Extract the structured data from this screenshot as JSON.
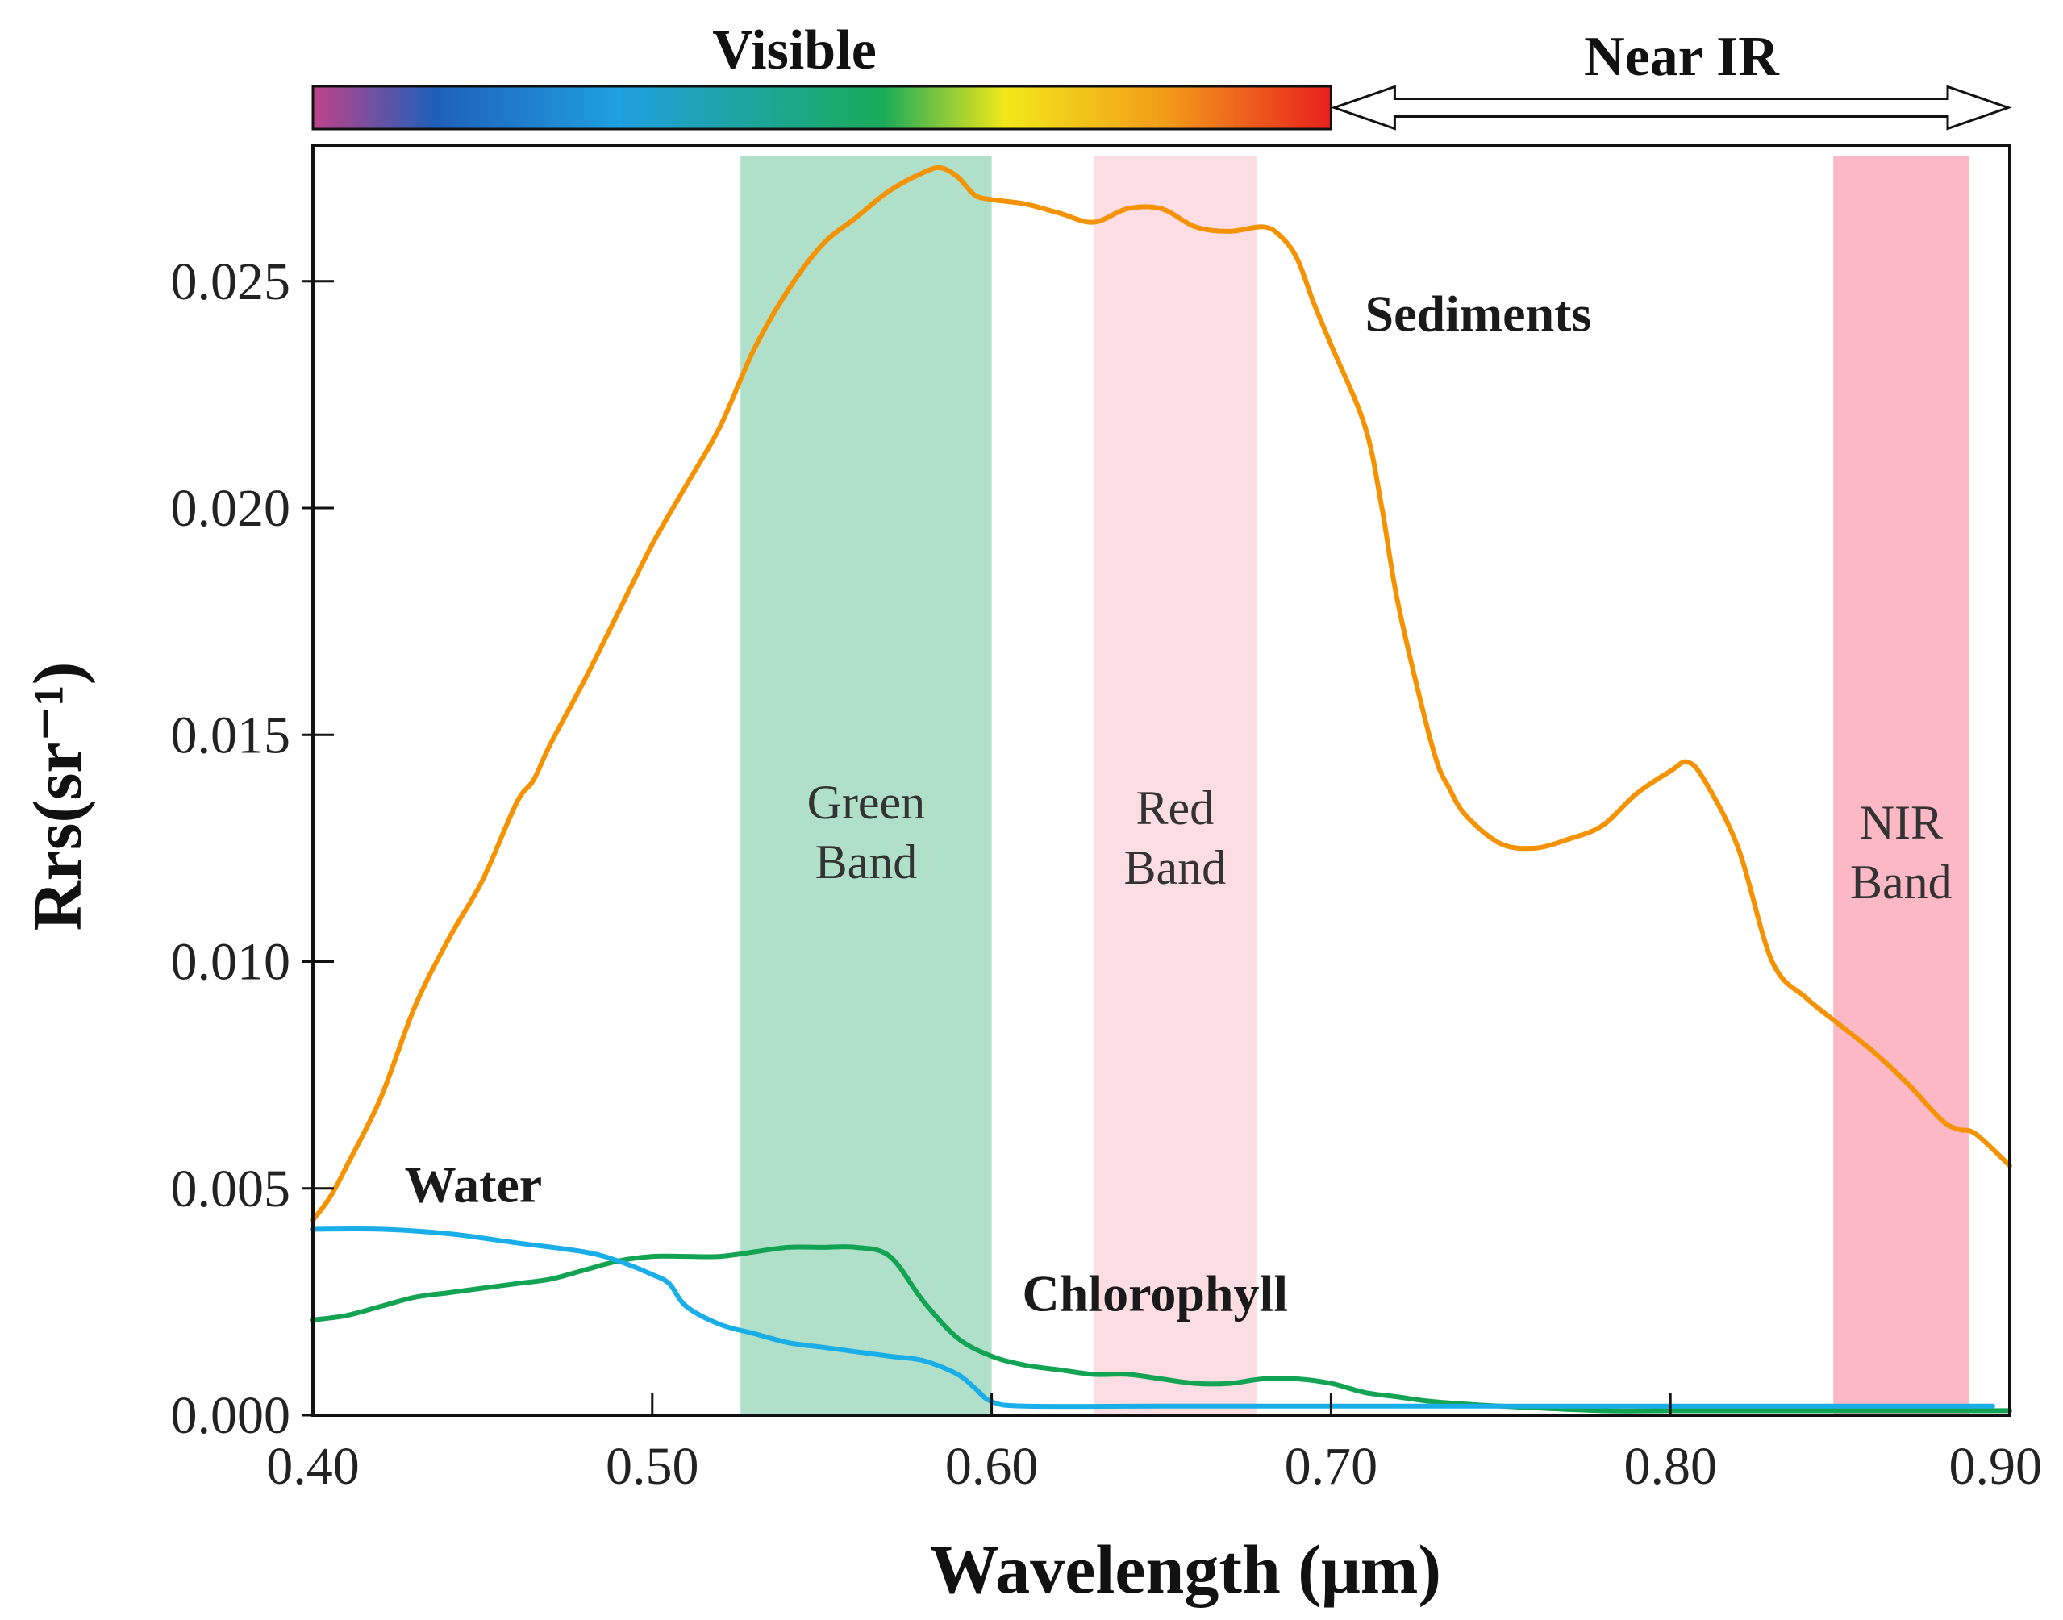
{
  "chart_data": {
    "type": "line",
    "title": "",
    "xlabel": "Wavelength (μm)",
    "ylabel": "Rrs(sr⁻¹)",
    "xlim": [
      0.4,
      0.9
    ],
    "ylim": [
      0.0,
      0.028
    ],
    "x_ticks": [
      "0.40",
      "0.50",
      "0.60",
      "0.70",
      "0.80",
      "0.90"
    ],
    "x_tick_values": [
      0.4,
      0.5,
      0.6,
      0.7,
      0.8,
      0.9
    ],
    "y_ticks": [
      "0.000",
      "0.005",
      "0.010",
      "0.015",
      "0.020",
      "0.025"
    ],
    "y_tick_values": [
      0.0,
      0.005,
      0.01,
      0.015,
      0.02,
      0.025
    ],
    "grid": false,
    "spectrum_bar": {
      "visible_label": "Visible",
      "near_ir_label": "Near IR",
      "visible_range": [
        0.4,
        0.7
      ],
      "near_ir_range": [
        0.7,
        0.9
      ],
      "gradient_colors": [
        "#c0428a",
        "#1f5fb8",
        "#1fa0e0",
        "#1aab5a",
        "#f2e81a",
        "#f39a1a",
        "#e8201e"
      ]
    },
    "bands": [
      {
        "name": "Green Band",
        "line1": "Green",
        "line2": "Band",
        "range": [
          0.526,
          0.6
        ],
        "color": "#b0dfca"
      },
      {
        "name": "Red Band",
        "line1": "Red",
        "line2": "Band",
        "range": [
          0.63,
          0.678
        ],
        "color": "#fcdde3"
      },
      {
        "name": "NIR Band",
        "line1": "NIR",
        "line2": "Band",
        "range": [
          0.848,
          0.888
        ],
        "color": "#fdb8c6"
      }
    ],
    "series": [
      {
        "name": "Sediments",
        "color": "#f59200",
        "x": [
          0.4,
          0.405,
          0.41,
          0.42,
          0.43,
          0.44,
          0.45,
          0.46,
          0.465,
          0.47,
          0.48,
          0.49,
          0.5,
          0.51,
          0.52,
          0.53,
          0.54,
          0.55,
          0.56,
          0.57,
          0.58,
          0.585,
          0.59,
          0.595,
          0.6,
          0.61,
          0.62,
          0.63,
          0.64,
          0.65,
          0.66,
          0.67,
          0.68,
          0.685,
          0.69,
          0.695,
          0.7,
          0.71,
          0.715,
          0.72,
          0.73,
          0.735,
          0.74,
          0.75,
          0.76,
          0.77,
          0.78,
          0.79,
          0.8,
          0.805,
          0.81,
          0.82,
          0.83,
          0.84,
          0.85,
          0.86,
          0.87,
          0.88,
          0.885,
          0.89,
          0.9
        ],
        "values": [
          0.0043,
          0.0048,
          0.0055,
          0.007,
          0.009,
          0.0105,
          0.0118,
          0.0135,
          0.014,
          0.0148,
          0.0162,
          0.0177,
          0.0192,
          0.0205,
          0.0218,
          0.0235,
          0.0248,
          0.0258,
          0.0264,
          0.027,
          0.0274,
          0.0275,
          0.0273,
          0.0269,
          0.0268,
          0.0267,
          0.0265,
          0.0263,
          0.0266,
          0.0266,
          0.0262,
          0.0261,
          0.0262,
          0.026,
          0.0255,
          0.0245,
          0.0236,
          0.0218,
          0.02,
          0.0178,
          0.0147,
          0.0138,
          0.0132,
          0.0126,
          0.0125,
          0.0127,
          0.013,
          0.0137,
          0.0142,
          0.0144,
          0.014,
          0.0125,
          0.01,
          0.0092,
          0.0086,
          0.008,
          0.0073,
          0.0065,
          0.0063,
          0.0062,
          0.0055
        ]
      },
      {
        "name": "Chlorophyll",
        "color": "#12a452",
        "x": [
          0.4,
          0.41,
          0.42,
          0.43,
          0.44,
          0.45,
          0.46,
          0.47,
          0.48,
          0.49,
          0.5,
          0.51,
          0.52,
          0.53,
          0.54,
          0.55,
          0.56,
          0.57,
          0.58,
          0.59,
          0.6,
          0.61,
          0.62,
          0.63,
          0.64,
          0.65,
          0.66,
          0.67,
          0.68,
          0.69,
          0.7,
          0.71,
          0.72,
          0.73,
          0.75,
          0.78,
          0.8,
          0.85,
          0.9
        ],
        "values": [
          0.0021,
          0.0022,
          0.0024,
          0.0026,
          0.0027,
          0.0028,
          0.0029,
          0.003,
          0.0032,
          0.0034,
          0.0035,
          0.0035,
          0.0035,
          0.0036,
          0.0037,
          0.0037,
          0.0037,
          0.0035,
          0.0025,
          0.0017,
          0.0013,
          0.0011,
          0.001,
          0.0009,
          0.0009,
          0.0008,
          0.0007,
          0.0007,
          0.0008,
          0.0008,
          0.0007,
          0.0005,
          0.0004,
          0.0003,
          0.0002,
          0.0001,
          0.0001,
          0.0001,
          0.0001
        ]
      },
      {
        "name": "Water",
        "color": "#1aaee8",
        "x": [
          0.4,
          0.42,
          0.44,
          0.46,
          0.48,
          0.49,
          0.5,
          0.505,
          0.51,
          0.52,
          0.53,
          0.54,
          0.55,
          0.56,
          0.57,
          0.58,
          0.59,
          0.595,
          0.6,
          0.61,
          0.65,
          0.7,
          0.8,
          0.85,
          0.895
        ],
        "values": [
          0.0041,
          0.0041,
          0.004,
          0.0038,
          0.0036,
          0.0034,
          0.0031,
          0.0029,
          0.0024,
          0.002,
          0.0018,
          0.0016,
          0.0015,
          0.0014,
          0.0013,
          0.0012,
          0.0009,
          0.0006,
          0.0003,
          0.0002,
          0.0002,
          0.0002,
          0.0002,
          0.0002,
          0.0002
        ]
      }
    ],
    "annotations": [
      {
        "text": "Sediments",
        "x": 0.71,
        "y": 0.0239,
        "anchor": "start"
      },
      {
        "text": "Water",
        "x": 0.427,
        "y": 0.0047,
        "anchor": "start"
      },
      {
        "text": "Chlorophyll",
        "x": 0.609,
        "y": 0.0023,
        "anchor": "start"
      }
    ]
  }
}
